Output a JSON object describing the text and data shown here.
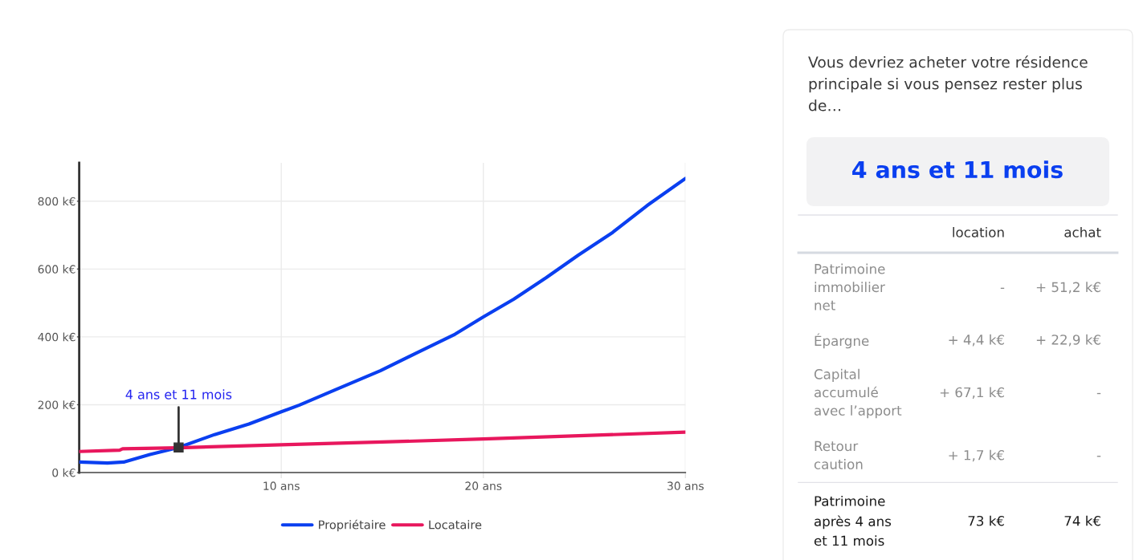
{
  "chart_data": [
    {
      "type": "line",
      "series": [
        {
          "name": "Propriétaire",
          "color": "#0a3ff0",
          "x": [
            0,
            1.4,
            2.2,
            3.5,
            4.92,
            6.7,
            8.4,
            10,
            10.9,
            12.6,
            14.9,
            16.7,
            18.6,
            20,
            21.5,
            23.1,
            24.7,
            26.4,
            28.1,
            30
          ],
          "values": [
            31,
            28,
            31,
            53,
            74,
            112,
            143,
            179,
            199,
            242,
            300,
            353,
            408,
            459,
            511,
            574,
            641,
            708,
            787,
            867
          ]
        },
        {
          "name": "Locataire",
          "color": "#e8175d",
          "x": [
            0,
            2.0,
            2.15,
            4.92,
            10,
            15,
            20,
            25,
            30
          ],
          "values": [
            62,
            66,
            70,
            73,
            82,
            90,
            99,
            109,
            119
          ]
        }
      ],
      "xlim": [
        0,
        30
      ],
      "xticks": [
        {
          "value": 10,
          "label": "10 ans"
        },
        {
          "value": 20,
          "label": "20 ans"
        },
        {
          "value": 30,
          "label": "30 ans"
        }
      ],
      "ylim": [
        0,
        913
      ],
      "yticks": [
        {
          "value": 0,
          "label": "0 k€"
        },
        {
          "value": 200,
          "label": "200 k€"
        },
        {
          "value": 400,
          "label": "400 k€"
        },
        {
          "value": 600,
          "label": "600 k€"
        },
        {
          "value": 800,
          "label": "800 k€"
        }
      ],
      "grid": true,
      "legend": "bottom",
      "annotations": [
        {
          "text": "4 ans et 11 mois",
          "x": 4.92,
          "y": 74
        }
      ]
    },
    {
      "type": "other",
      "title": "Vous devriez acheter votre résidence principale si vous pensez rester plus de…",
      "subtitle": "4 ans et 11 mois",
      "annotations": [
        "location",
        "achat",
        "Patrimoine immobilier net",
        "-",
        "+ 51,2 k€",
        "Épargne",
        "+ 4,4 k€",
        "+ 22,9 k€",
        "Capital accumulé avec l’apport",
        "+ 67,1 k€",
        "-",
        "Retour caution",
        "+ 1,7 k€",
        "-",
        "Patrimoine après 4 ans et 11 mois",
        "73 k€",
        "74 k€"
      ]
    }
  ]
}
